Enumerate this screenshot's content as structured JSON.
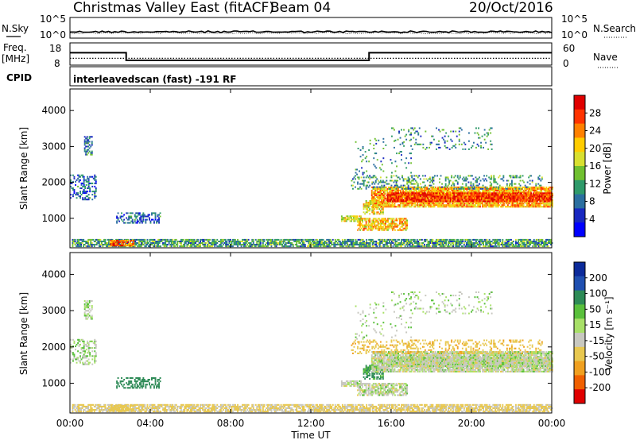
{
  "header": {
    "title": "Christmas Valley East (fitACF)",
    "beam": "Beam 04",
    "date": "20/Oct/2016"
  },
  "strip_labels": {
    "nsky": "N.Sky",
    "nsky_ticks": [
      "10^5",
      "10^0"
    ],
    "nsearch": "N.Search",
    "nsearch_ticks": [
      "10^5",
      "10^0"
    ],
    "freq_line1": "Freq.",
    "freq_line2": "[MHz]",
    "freq_ticks": [
      "18",
      "8"
    ],
    "nave": "Nave",
    "nave_ticks": [
      "60",
      "0"
    ],
    "cpid": "CPID",
    "cpid_text": "interleavedscan (fast) -191 RF"
  },
  "chart_data": {
    "type": "heatmap",
    "xlabel": "Time UT",
    "x_ticks": [
      "00:00",
      "04:00",
      "08:00",
      "12:00",
      "16:00",
      "20:00",
      "00:00"
    ],
    "xlim_hours": [
      0,
      24
    ],
    "ylabel": "Slant Range [km]",
    "y_ticks": [
      1000,
      2000,
      3000,
      4000
    ],
    "ylim_km": [
      180,
      4600
    ],
    "panels": [
      {
        "id": "power",
        "colorbar_label": "Power [dB]",
        "colorbar_ticks": [
          "28",
          "24",
          "20",
          "16",
          "12",
          "8",
          "4"
        ],
        "colorbar_colors": [
          "#e00000",
          "#ff3300",
          "#ff8000",
          "#ffcc00",
          "#d8e030",
          "#70c030",
          "#2f9a6a",
          "#2b6fa0",
          "#1828c0",
          "#0000ff"
        ]
      },
      {
        "id": "velocity",
        "colorbar_label": "Velocity [m s⁻¹]",
        "colorbar_ticks": [
          "200",
          "100",
          "50",
          "15",
          "-15",
          "-50",
          "-100",
          "-200"
        ],
        "colorbar_colors": [
          "#0c2a9a",
          "#1f4fb0",
          "#2e8b57",
          "#5ac03c",
          "#a8e068",
          "#c8c8c0",
          "#e8c850",
          "#f0a020",
          "#f06000",
          "#e00000"
        ]
      }
    ],
    "freq_mhz": [
      {
        "start_h": 0.0,
        "end_h": 2.8,
        "value": 14.2
      },
      {
        "start_h": 2.8,
        "end_h": 14.9,
        "value": 9.8
      },
      {
        "start_h": 14.9,
        "end_h": 24.0,
        "value": 14.2
      }
    ],
    "nave_level": 18,
    "echo_regions": [
      {
        "t0": 0.1,
        "t1": 24.0,
        "r0": 200,
        "r1": 420,
        "power": 10,
        "vel": -20,
        "density": 0.75
      },
      {
        "t0": 2.0,
        "t1": 3.2,
        "r0": 220,
        "r1": 380,
        "power": 25,
        "vel": -30,
        "density": 0.9
      },
      {
        "t0": 0.7,
        "t1": 1.1,
        "r0": 2750,
        "r1": 3250,
        "power": 8,
        "vel": 5,
        "density": 0.55
      },
      {
        "t0": 0.0,
        "t1": 1.3,
        "r0": 1500,
        "r1": 2200,
        "power": 6,
        "vel": 5,
        "density": 0.35
      },
      {
        "t0": 2.3,
        "t1": 4.5,
        "r0": 850,
        "r1": 1150,
        "power": 6,
        "vel": 70,
        "density": 0.4
      },
      {
        "t0": 13.5,
        "t1": 14.5,
        "r0": 900,
        "r1": 1050,
        "power": 18,
        "vel": 0,
        "density": 0.7
      },
      {
        "t0": 14.3,
        "t1": 16.8,
        "r0": 650,
        "r1": 1000,
        "power": 20,
        "vel": 0,
        "density": 0.75
      },
      {
        "t0": 14.6,
        "t1": 15.6,
        "r0": 1100,
        "r1": 1500,
        "power": 18,
        "vel": 60,
        "density": 0.6
      },
      {
        "t0": 15.0,
        "t1": 24.0,
        "r0": 1300,
        "r1": 1850,
        "power": 21,
        "vel": 0,
        "density": 0.85
      },
      {
        "t0": 15.8,
        "t1": 24.0,
        "r0": 1450,
        "r1": 1700,
        "power": 27,
        "vel": 0,
        "density": 0.9
      },
      {
        "t0": 14.0,
        "t1": 23.5,
        "r0": 1800,
        "r1": 2200,
        "power": 10,
        "vel": -40,
        "density": 0.25
      },
      {
        "t0": 16.0,
        "t1": 21.0,
        "r0": 2900,
        "r1": 3500,
        "power": 9,
        "vel": 5,
        "density": 0.12
      },
      {
        "t0": 14.2,
        "t1": 17.0,
        "r0": 2200,
        "r1": 3200,
        "power": 9,
        "vel": 5,
        "density": 0.06
      }
    ]
  }
}
